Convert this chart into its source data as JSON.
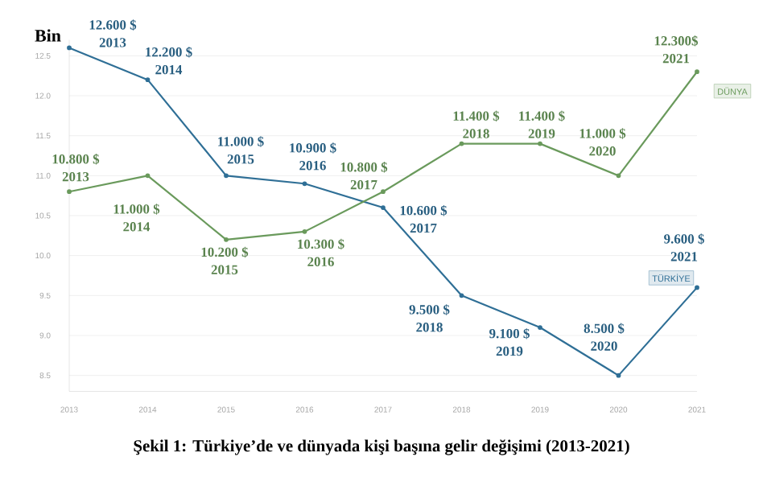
{
  "chart_data": {
    "type": "line",
    "ylabel": "Bin",
    "annotations": [
      "Şekil 1: Türkiye’de ve dünyada kişi başına gelir değişimi (2013-2021)"
    ],
    "categories": [
      "2013",
      "2014",
      "2015",
      "2016",
      "2017",
      "2018",
      "2019",
      "2020",
      "2021"
    ],
    "ylim": [
      8.3,
      12.7
    ],
    "yticks": [
      {
        "value": 8.5,
        "label": "8.5"
      },
      {
        "value": 9,
        "label": "9.0"
      },
      {
        "value": 9.5,
        "label": "9.5"
      },
      {
        "value": 10,
        "label": "10.0"
      },
      {
        "value": 10.5,
        "label": "10.5"
      },
      {
        "value": 11,
        "label": "11.0"
      },
      {
        "value": 11.5,
        "label": "11.5"
      },
      {
        "value": 12,
        "label": "12.0"
      },
      {
        "value": 12.5,
        "label": "12.5"
      }
    ],
    "grid": "y",
    "marker": "circle",
    "line_style": "solid",
    "series": [
      {
        "name": "TÜRKİYE",
        "color": "#2f6f96",
        "values": [
          12.6,
          12.2,
          11.0,
          10.9,
          10.6,
          9.5,
          9.1,
          8.5,
          9.6
        ],
        "value_labels": [
          "12.600 $",
          "12.200 $",
          "11.000 $",
          "10.900 $",
          "10.600 $",
          "9.500 $",
          "9.100 $",
          "8.500 $",
          "9.600 $"
        ]
      },
      {
        "name": "DÜNYA",
        "color": "#6a9a5c",
        "values": [
          10.8,
          11.0,
          10.2,
          10.3,
          10.8,
          11.4,
          11.4,
          11.0,
          12.3
        ],
        "value_labels": [
          "10.800 $",
          "11.000 $",
          "10.200 $",
          "10.300 $",
          "10.800 $",
          "11.400 $",
          "11.400 $",
          "11.000 $",
          "12.300$"
        ]
      }
    ]
  }
}
